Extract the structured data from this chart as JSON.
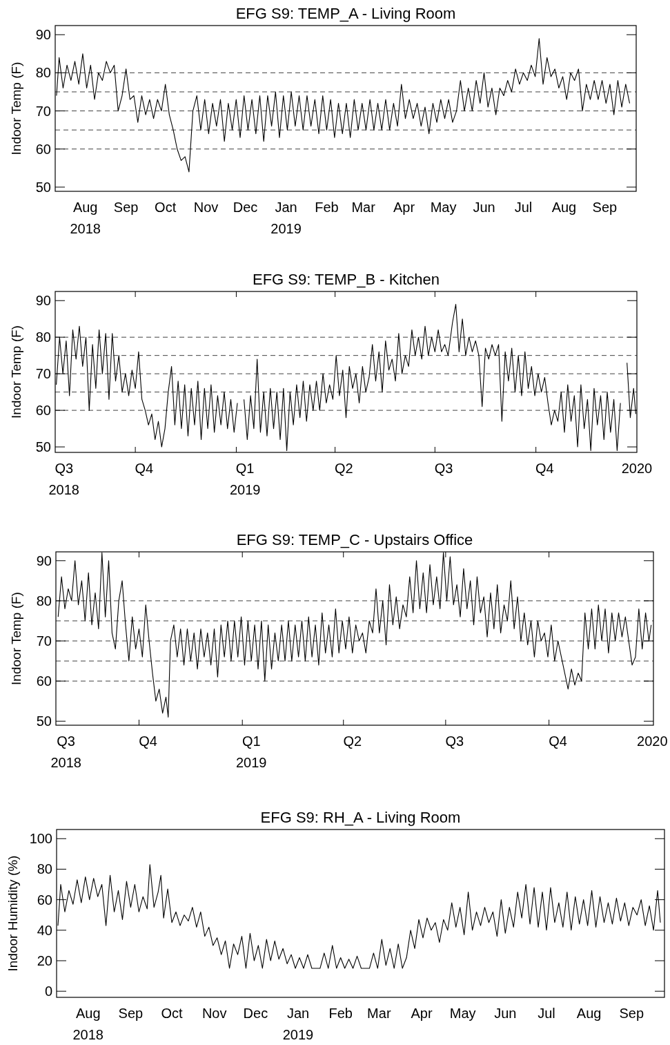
{
  "chart_data": [
    {
      "type": "line",
      "title": "EFG S9: TEMP_A - Living Room",
      "ylabel": "Indoor Temp (F)",
      "xlim": [
        "2018-07-19",
        "2019-10-05"
      ],
      "ylim": [
        48.9,
        92.4
      ],
      "yticks": [
        50,
        60,
        70,
        80,
        90
      ],
      "xticks": [
        {
          "value": "2018-08-11",
          "label": "Aug\n2018"
        },
        {
          "value": "2018-09-11",
          "label": "Sep"
        },
        {
          "value": "2018-10-11",
          "label": "Oct"
        },
        {
          "value": "2018-11-11",
          "label": "Nov"
        },
        {
          "value": "2018-12-11",
          "label": "Dec"
        },
        {
          "value": "2019-01-11",
          "label": "Jan\n2019"
        },
        {
          "value": "2019-02-11",
          "label": "Feb"
        },
        {
          "value": "2019-03-11",
          "label": "Mar"
        },
        {
          "value": "2019-04-11",
          "label": "Apr"
        },
        {
          "value": "2019-05-11",
          "label": "May"
        },
        {
          "value": "2019-06-11",
          "label": "Jun"
        },
        {
          "value": "2019-07-11",
          "label": "Jul"
        },
        {
          "value": "2019-08-11",
          "label": "Aug"
        },
        {
          "value": "2019-09-11",
          "label": "Sep"
        }
      ],
      "ref_lines": [
        {
          "axis": "y",
          "value": 60,
          "color": "#404040",
          "line_style": "dashed"
        },
        {
          "axis": "y",
          "value": 65,
          "color": "#404040",
          "line_style": "dashed"
        },
        {
          "axis": "y",
          "value": 70,
          "color": "#404040",
          "line_style": "dashed"
        },
        {
          "axis": "y",
          "value": 75,
          "color": "#404040",
          "line_style": "dashed"
        },
        {
          "axis": "y",
          "value": 80,
          "color": "#404040",
          "line_style": "dashed"
        }
      ],
      "x": [
        "2018-07-20",
        "2018-07-22",
        "2018-07-25",
        "2018-07-28",
        "2018-07-31",
        "2018-08-03",
        "2018-08-06",
        "2018-08-09",
        "2018-08-12",
        "2018-08-15",
        "2018-08-18",
        "2018-08-21",
        "2018-08-24",
        "2018-08-27",
        "2018-08-30",
        "2018-09-02",
        "2018-09-05",
        "2018-09-08",
        "2018-09-11",
        "2018-09-14",
        "2018-09-17",
        "2018-09-20",
        "2018-09-23",
        "2018-09-26",
        "2018-09-29",
        "2018-10-02",
        "2018-10-05",
        "2018-10-08",
        "2018-10-11",
        "2018-10-14",
        "2018-10-17",
        "2018-10-20",
        "2018-10-23",
        "2018-10-26",
        "2018-10-29",
        "2018-11-01",
        "2018-11-04",
        "2018-11-07",
        "2018-11-10",
        "2018-11-13",
        "2018-11-16",
        "2018-11-19",
        "2018-11-22",
        "2018-11-25",
        "2018-11-28",
        "2018-12-01",
        "2018-12-04",
        "2018-12-07",
        "2018-12-10",
        "2018-12-13",
        "2018-12-16",
        "2018-12-19",
        "2018-12-22",
        "2018-12-25",
        "2018-12-28",
        "2018-12-31",
        "2019-01-03",
        "2019-01-06",
        "2019-01-09",
        "2019-01-12",
        "2019-01-15",
        "2019-01-18",
        "2019-01-21",
        "2019-01-24",
        "2019-01-27",
        "2019-01-30",
        "2019-02-02",
        "2019-02-05",
        "2019-02-08",
        "2019-02-11",
        "2019-02-14",
        "2019-02-17",
        "2019-02-20",
        "2019-02-23",
        "2019-02-26",
        "2019-03-01",
        "2019-03-04",
        "2019-03-07",
        "2019-03-10",
        "2019-03-13",
        "2019-03-16",
        "2019-03-19",
        "2019-03-22",
        "2019-03-25",
        "2019-03-28",
        "2019-03-31",
        "2019-04-03",
        "2019-04-06",
        "2019-04-09",
        "2019-04-12",
        "2019-04-15",
        "2019-04-18",
        "2019-04-21",
        "2019-04-24",
        "2019-04-27",
        "2019-04-30",
        "2019-05-03",
        "2019-05-06",
        "2019-05-09",
        "2019-05-12",
        "2019-05-15",
        "2019-05-18",
        "2019-05-21",
        "2019-05-24",
        "2019-05-27",
        "2019-05-30",
        "2019-06-02",
        "2019-06-05",
        "2019-06-08",
        "2019-06-11",
        "2019-06-14",
        "2019-06-17",
        "2019-06-20",
        "2019-06-23",
        "2019-06-26",
        "2019-06-29",
        "2019-07-02",
        "2019-07-05",
        "2019-07-08",
        "2019-07-11",
        "2019-07-14",
        "2019-07-17",
        "2019-07-20",
        "2019-07-23",
        "2019-07-26",
        "2019-07-29",
        "2019-08-01",
        "2019-08-04",
        "2019-08-07",
        "2019-08-10",
        "2019-08-13",
        "2019-08-16",
        "2019-08-19",
        "2019-08-22",
        "2019-08-25",
        "2019-08-28",
        "2019-08-31",
        "2019-09-03",
        "2019-09-06",
        "2019-09-09",
        "2019-09-12",
        "2019-09-15",
        "2019-09-18",
        "2019-09-21",
        "2019-09-24",
        "2019-09-27",
        "2019-09-30"
      ],
      "series": [
        {
          "color": "#000000",
          "values": [
            74,
            84,
            76,
            82,
            78,
            83,
            77,
            85,
            76,
            82,
            73,
            80,
            78,
            83,
            80,
            82,
            70,
            74,
            81,
            73,
            74,
            67,
            74,
            69,
            73,
            68,
            73,
            70,
            77,
            69,
            65,
            60,
            57,
            58,
            54,
            70,
            74,
            65,
            73,
            64,
            72,
            66,
            73,
            62,
            72,
            65,
            73,
            63,
            74,
            65,
            73,
            64,
            74,
            62,
            74,
            66,
            75,
            63,
            74,
            65,
            75,
            66,
            74,
            65,
            74,
            66,
            73,
            64,
            74,
            65,
            73,
            63,
            72,
            64,
            72,
            63,
            73,
            65,
            72,
            65,
            73,
            65,
            72,
            65,
            73,
            65,
            72,
            66,
            77,
            68,
            73,
            68,
            72,
            66,
            71,
            64,
            72,
            67,
            73,
            68,
            73,
            67,
            70,
            78,
            70,
            76,
            70,
            78,
            72,
            80,
            71,
            76,
            69,
            76,
            74,
            78,
            75,
            81,
            77,
            80,
            78,
            82,
            79,
            89,
            77,
            84,
            79,
            81,
            76,
            79,
            73,
            80,
            78,
            81,
            70,
            77,
            73,
            78,
            73,
            78,
            72,
            77,
            69,
            78,
            71,
            77,
            72
          ]
        }
      ]
    },
    {
      "type": "line",
      "title": "EFG S9: TEMP_B - Kitchen",
      "ylabel": "Indoor Temp (F)",
      "xlim": [
        "2018-07-20",
        "2020-01-01"
      ],
      "ylim": [
        48.5,
        92.5
      ],
      "yticks": [
        50,
        60,
        70,
        80,
        90
      ],
      "xticks": [
        {
          "value": "2018-10-01",
          "label": null
        },
        {
          "value": "2019-01-01",
          "label": null
        },
        {
          "value": "2019-04-01",
          "label": null
        },
        {
          "value": "2019-07-01",
          "label": null
        },
        {
          "value": "2019-10-01",
          "label": null
        },
        {
          "value": "2018-07-28",
          "label": "Q3\n2018"
        },
        {
          "value": "2018-10-09",
          "label": "Q4"
        },
        {
          "value": "2019-01-09",
          "label": "Q1\n2019"
        },
        {
          "value": "2019-04-09",
          "label": "Q2"
        },
        {
          "value": "2019-07-09",
          "label": "Q3"
        },
        {
          "value": "2019-10-09",
          "label": "Q4"
        },
        {
          "value": "2020-01-01",
          "label": "2020"
        }
      ],
      "ref_lines": [
        {
          "axis": "y",
          "value": 60,
          "color": "#404040",
          "line_style": "dashed"
        },
        {
          "axis": "y",
          "value": 65,
          "color": "#404040",
          "line_style": "dashed"
        },
        {
          "axis": "y",
          "value": 70,
          "color": "#404040",
          "line_style": "dashed"
        },
        {
          "axis": "y",
          "value": 75,
          "color": "#404040",
          "line_style": "dashed"
        },
        {
          "axis": "y",
          "value": 80,
          "color": "#404040",
          "line_style": "dashed"
        }
      ],
      "x": [
        "2018-07-21",
        "2018-07-24",
        "2018-07-27",
        "2018-07-30",
        "2018-08-02",
        "2018-08-05",
        "2018-08-08",
        "2018-08-11",
        "2018-08-14",
        "2018-08-17",
        "2018-08-20",
        "2018-08-23",
        "2018-08-26",
        "2018-08-29",
        "2018-09-01",
        "2018-09-04",
        "2018-09-07",
        "2018-09-10",
        "2018-09-13",
        "2018-09-16",
        "2018-09-19",
        "2018-09-22",
        "2018-09-25",
        "2018-09-28",
        "2018-10-01",
        "2018-10-04",
        "2018-10-07",
        "2018-10-10",
        "2018-10-13",
        "2018-10-16",
        "2018-10-19",
        "2018-10-22",
        "2018-10-25",
        "2018-10-28",
        "2018-10-31",
        "2018-11-03",
        "2018-11-06",
        "2018-11-09",
        "2018-11-12",
        "2018-11-15",
        "2018-11-18",
        "2018-11-21",
        "2018-11-24",
        "2018-11-27",
        "2018-11-30",
        "2018-12-03",
        "2018-12-06",
        "2018-12-09",
        "2018-12-12",
        "2018-12-15",
        "2018-12-18",
        "2018-12-21",
        "2018-12-24",
        "2018-12-27",
        "2018-12-30",
        "2019-01-02",
        "2019-01-05",
        "2019-01-08",
        "2019-01-11",
        "2019-01-14",
        "2019-01-17",
        "2019-01-20",
        "2019-01-23",
        "2019-01-26",
        "2019-01-29",
        "2019-02-01",
        "2019-02-04",
        "2019-02-07",
        "2019-02-10",
        "2019-02-13",
        "2019-02-16",
        "2019-02-19",
        "2019-02-22",
        "2019-02-25",
        "2019-02-28",
        "2019-03-03",
        "2019-03-06",
        "2019-03-09",
        "2019-03-12",
        "2019-03-15",
        "2019-03-18",
        "2019-03-21",
        "2019-03-24",
        "2019-03-27",
        "2019-03-30",
        "2019-04-02",
        "2019-04-05",
        "2019-04-08",
        "2019-04-11",
        "2019-04-14",
        "2019-04-17",
        "2019-04-20",
        "2019-04-23",
        "2019-04-26",
        "2019-04-29",
        "2019-05-02",
        "2019-05-05",
        "2019-05-08",
        "2019-05-11",
        "2019-05-14",
        "2019-05-17",
        "2019-05-20",
        "2019-05-23",
        "2019-05-26",
        "2019-05-29",
        "2019-06-01",
        "2019-06-04",
        "2019-06-07",
        "2019-06-10",
        "2019-06-13",
        "2019-06-16",
        "2019-06-19",
        "2019-06-22",
        "2019-06-25",
        "2019-06-28",
        "2019-07-01",
        "2019-07-04",
        "2019-07-07",
        "2019-07-10",
        "2019-07-13",
        "2019-07-17",
        "2019-07-20",
        "2019-07-23",
        "2019-07-26",
        "2019-07-29",
        "2019-08-01",
        "2019-08-04",
        "2019-08-07",
        "2019-08-10",
        "2019-08-13",
        "2019-08-16",
        "2019-08-19",
        "2019-08-22",
        "2019-08-25",
        "2019-08-28",
        "2019-08-31",
        "2019-09-03",
        "2019-09-06",
        "2019-09-09",
        "2019-09-12",
        "2019-09-15",
        "2019-09-18",
        "2019-09-21",
        "2019-09-24",
        "2019-09-27",
        "2019-09-30",
        "2019-10-03",
        "2019-10-06",
        "2019-10-09",
        "2019-10-12",
        "2019-10-15",
        "2019-10-18",
        "2019-10-21",
        "2019-10-24",
        "2019-10-27",
        "2019-10-30",
        "2019-11-02",
        "2019-11-05",
        "2019-11-08",
        "2019-11-11",
        "2019-11-14",
        "2019-11-17",
        "2019-11-20",
        "2019-11-23",
        "2019-11-26",
        "2019-11-29",
        "2019-12-02",
        "2019-12-05",
        "2019-12-08",
        "2019-12-11",
        "2019-12-14",
        "2019-12-17",
        "2019-12-20",
        "2019-12-23",
        "2019-12-26",
        "2019-12-29",
        "2019-12-31"
      ],
      "series": [
        {
          "color": "#000000",
          "values": [
            67,
            80,
            70,
            79,
            64,
            82,
            74,
            83,
            72,
            80,
            60,
            78,
            66,
            82,
            70,
            81,
            63,
            81,
            68,
            75,
            65,
            70,
            64,
            71,
            66,
            76,
            63,
            60,
            56,
            59,
            52,
            57,
            50,
            55,
            65,
            72,
            56,
            68,
            55,
            67,
            53,
            66,
            56,
            68,
            52,
            66,
            55,
            67,
            54,
            64,
            56,
            65,
            55,
            63,
            54,
            62,
            null,
            63,
            52,
            64,
            55,
            74,
            54,
            65,
            53,
            66,
            55,
            65,
            52,
            66,
            49,
            65,
            56,
            67,
            58,
            68,
            57,
            67,
            60,
            68,
            60,
            70,
            62,
            67,
            63,
            75,
            64,
            71,
            58,
            72,
            66,
            70,
            62,
            72,
            65,
            69,
            78,
            68,
            76,
            65,
            79,
            71,
            74,
            68,
            81,
            70,
            75,
            72,
            82,
            75,
            80,
            74,
            83,
            75,
            80,
            76,
            82,
            76,
            78,
            75,
            84,
            89,
            76,
            85,
            75,
            80,
            76,
            79,
            75,
            61,
            77,
            74,
            78,
            75,
            78,
            57,
            76,
            68,
            77,
            65,
            75,
            64,
            76,
            66,
            72,
            64,
            70,
            65,
            69,
            62,
            56,
            60,
            57,
            65,
            54,
            67,
            57,
            64,
            50,
            67,
            55,
            63,
            49,
            66,
            56,
            64,
            52,
            65,
            54,
            63,
            49,
            62,
            null,
            73,
            58,
            66,
            59
          ]
        }
      ]
    },
    {
      "type": "line",
      "title": "EFG S9: TEMP_C - Upstairs Office",
      "ylabel": "Indoor Temp (F)",
      "xlim": [
        "2018-07-19",
        "2020-01-02"
      ],
      "ylim": [
        49,
        92.2
      ],
      "yticks": [
        50,
        60,
        70,
        80,
        90
      ],
      "xticks": [
        {
          "value": "2018-10-01",
          "label": null
        },
        {
          "value": "2019-01-01",
          "label": null
        },
        {
          "value": "2019-04-01",
          "label": null
        },
        {
          "value": "2019-07-01",
          "label": null
        },
        {
          "value": "2019-10-01",
          "label": null
        },
        {
          "value": "2018-07-28",
          "label": "Q3\n2018"
        },
        {
          "value": "2018-10-09",
          "label": "Q4"
        },
        {
          "value": "2019-01-09",
          "label": "Q1\n2019"
        },
        {
          "value": "2019-04-09",
          "label": "Q2"
        },
        {
          "value": "2019-07-09",
          "label": "Q3"
        },
        {
          "value": "2019-10-09",
          "label": "Q4"
        },
        {
          "value": "2020-01-01",
          "label": "2020"
        }
      ],
      "ref_lines": [
        {
          "axis": "y",
          "value": 60,
          "color": "#404040",
          "line_style": "dashed"
        },
        {
          "axis": "y",
          "value": 65,
          "color": "#404040",
          "line_style": "dashed"
        },
        {
          "axis": "y",
          "value": 70,
          "color": "#404040",
          "line_style": "dashed"
        },
        {
          "axis": "y",
          "value": 75,
          "color": "#404040",
          "line_style": "dashed"
        },
        {
          "axis": "y",
          "value": 80,
          "color": "#404040",
          "line_style": "dashed"
        }
      ],
      "x": [
        "2018-07-21",
        "2018-07-24",
        "2018-07-27",
        "2018-07-30",
        "2018-08-02",
        "2018-08-05",
        "2018-08-08",
        "2018-08-11",
        "2018-08-14",
        "2018-08-17",
        "2018-08-20",
        "2018-08-23",
        "2018-08-26",
        "2018-08-29",
        "2018-09-01",
        "2018-09-04",
        "2018-09-07",
        "2018-09-10",
        "2018-09-13",
        "2018-09-16",
        "2018-09-19",
        "2018-09-22",
        "2018-09-25",
        "2018-09-28",
        "2018-10-01",
        "2018-10-04",
        "2018-10-07",
        "2018-10-10",
        "2018-10-13",
        "2018-10-16",
        "2018-10-19",
        "2018-10-22",
        "2018-10-25",
        "2018-10-27",
        "2018-10-29",
        "2018-11-01",
        "2018-11-04",
        "2018-11-07",
        "2018-11-10",
        "2018-11-13",
        "2018-11-16",
        "2018-11-19",
        "2018-11-22",
        "2018-11-25",
        "2018-11-28",
        "2018-12-01",
        "2018-12-04",
        "2018-12-07",
        "2018-12-10",
        "2018-12-13",
        "2018-12-16",
        "2018-12-19",
        "2018-12-22",
        "2018-12-25",
        "2018-12-28",
        "2018-12-31",
        "2019-01-03",
        "2019-01-06",
        "2019-01-09",
        "2019-01-12",
        "2019-01-15",
        "2019-01-18",
        "2019-01-21",
        "2019-01-24",
        "2019-01-27",
        "2019-01-30",
        "2019-02-02",
        "2019-02-05",
        "2019-02-08",
        "2019-02-11",
        "2019-02-14",
        "2019-02-17",
        "2019-02-20",
        "2019-02-23",
        "2019-02-26",
        "2019-03-01",
        "2019-03-04",
        "2019-03-07",
        "2019-03-10",
        "2019-03-13",
        "2019-03-16",
        "2019-03-19",
        "2019-03-22",
        "2019-03-25",
        "2019-03-28",
        "2019-03-31",
        "2019-04-03",
        "2019-04-06",
        "2019-04-09",
        "2019-04-12",
        "2019-04-15",
        "2019-04-18",
        "2019-04-21",
        "2019-04-24",
        "2019-04-27",
        "2019-04-30",
        "2019-05-03",
        "2019-05-06",
        "2019-05-09",
        "2019-05-12",
        "2019-05-15",
        "2019-05-18",
        "2019-05-21",
        "2019-05-24",
        "2019-05-27",
        "2019-05-30",
        "2019-06-02",
        "2019-06-05",
        "2019-06-08",
        "2019-06-11",
        "2019-06-14",
        "2019-06-17",
        "2019-06-20",
        "2019-06-23",
        "2019-06-26",
        "2019-06-29",
        "2019-07-02",
        "2019-07-05",
        "2019-07-08",
        "2019-07-11",
        "2019-07-14",
        "2019-07-17",
        "2019-07-20",
        "2019-07-23",
        "2019-07-26",
        "2019-07-29",
        "2019-08-01",
        "2019-08-04",
        "2019-08-07",
        "2019-08-10",
        "2019-08-13",
        "2019-08-16",
        "2019-08-19",
        "2019-08-22",
        "2019-08-25",
        "2019-08-28",
        "2019-08-31",
        "2019-09-03",
        "2019-09-06",
        "2019-09-09",
        "2019-09-12",
        "2019-09-15",
        "2019-09-18",
        "2019-09-21",
        "2019-09-24",
        "2019-09-27",
        "2019-09-30",
        "2019-10-03",
        "2019-10-06",
        "2019-10-09",
        "2019-10-12",
        "2019-10-15",
        "2019-10-18",
        "2019-10-21",
        "2019-10-24",
        "2019-10-27",
        "2019-10-30",
        "2019-11-02",
        "2019-11-05",
        "2019-11-08",
        "2019-11-11",
        "2019-11-14",
        "2019-11-17",
        "2019-11-20",
        "2019-11-23",
        "2019-11-26",
        "2019-11-29",
        "2019-12-02",
        "2019-12-05",
        "2019-12-08",
        "2019-12-11",
        "2019-12-14",
        "2019-12-17",
        "2019-12-20",
        "2019-12-23",
        "2019-12-26",
        "2019-12-29",
        "2019-12-31"
      ],
      "series": [
        {
          "color": "#000000",
          "values": [
            76,
            86,
            78,
            83,
            80,
            90,
            79,
            85,
            75,
            87,
            74,
            82,
            73,
            92,
            76,
            90,
            72,
            68,
            80,
            85,
            74,
            65,
            76,
            68,
            73,
            66,
            79,
            70,
            62,
            55,
            58,
            52,
            56,
            51,
            70,
            74,
            66,
            73,
            64,
            73,
            65,
            72,
            63,
            73,
            66,
            72,
            64,
            73,
            61,
            74,
            66,
            75,
            65,
            75,
            66,
            76,
            64,
            75,
            65,
            74,
            63,
            75,
            60,
            74,
            63,
            72,
            65,
            74,
            65,
            75,
            65,
            74,
            66,
            75,
            65,
            76,
            66,
            74,
            64,
            77,
            67,
            74,
            66,
            78,
            67,
            75,
            68,
            76,
            67,
            74,
            70,
            72,
            67,
            75,
            72,
            83,
            72,
            80,
            69,
            84,
            74,
            81,
            73,
            79,
            76,
            86,
            77,
            90,
            78,
            87,
            77,
            89,
            79,
            86,
            78,
            92,
            80,
            91,
            79,
            84,
            76,
            88,
            78,
            85,
            74,
            86,
            77,
            81,
            71,
            82,
            73,
            84,
            72,
            79,
            75,
            85,
            73,
            81,
            70,
            77,
            69,
            75,
            66,
            75,
            70,
            72,
            66,
            74,
            65,
            70,
            66,
            62,
            58,
            63,
            59,
            62,
            60,
            77,
            68,
            78,
            68,
            79,
            70,
            78,
            67,
            77,
            70,
            77,
            71,
            76,
            70,
            64,
            66,
            78,
            68,
            77,
            70,
            74
          ]
        }
      ]
    },
    {
      "type": "line",
      "title": "EFG S9: RH_A - Living Room",
      "ylabel": "Indoor Humidity (%)",
      "xlim": [
        "2018-07-19",
        "2019-10-05"
      ],
      "ylim": [
        -4,
        106
      ],
      "yticks": [
        0,
        20,
        40,
        60,
        80,
        100
      ],
      "xticks": [
        {
          "value": "2018-08-11",
          "label": "Aug\n2018"
        },
        {
          "value": "2018-09-11",
          "label": "Sep"
        },
        {
          "value": "2018-10-11",
          "label": "Oct"
        },
        {
          "value": "2018-11-11",
          "label": "Nov"
        },
        {
          "value": "2018-12-11",
          "label": "Dec"
        },
        {
          "value": "2019-01-11",
          "label": "Jan\n2019"
        },
        {
          "value": "2019-02-11",
          "label": "Feb"
        },
        {
          "value": "2019-03-11",
          "label": "Mar"
        },
        {
          "value": "2019-04-11",
          "label": "Apr"
        },
        {
          "value": "2019-05-11",
          "label": "May"
        },
        {
          "value": "2019-06-11",
          "label": "Jun"
        },
        {
          "value": "2019-07-11",
          "label": "Jul"
        },
        {
          "value": "2019-08-11",
          "label": "Aug"
        },
        {
          "value": "2019-09-11",
          "label": "Sep"
        }
      ],
      "x": [
        "2018-07-20",
        "2018-07-22",
        "2018-07-25",
        "2018-07-28",
        "2018-07-31",
        "2018-08-03",
        "2018-08-06",
        "2018-08-09",
        "2018-08-12",
        "2018-08-15",
        "2018-08-18",
        "2018-08-21",
        "2018-08-24",
        "2018-08-27",
        "2018-08-30",
        "2018-09-02",
        "2018-09-05",
        "2018-09-08",
        "2018-09-11",
        "2018-09-14",
        "2018-09-17",
        "2018-09-20",
        "2018-09-23",
        "2018-09-25",
        "2018-09-28",
        "2018-10-01",
        "2018-10-03",
        "2018-10-05",
        "2018-10-08",
        "2018-10-11",
        "2018-10-14",
        "2018-10-17",
        "2018-10-20",
        "2018-10-23",
        "2018-10-26",
        "2018-10-29",
        "2018-11-01",
        "2018-11-04",
        "2018-11-07",
        "2018-11-10",
        "2018-11-13",
        "2018-11-16",
        "2018-11-19",
        "2018-11-22",
        "2018-11-25",
        "2018-11-28",
        "2018-12-01",
        "2018-12-04",
        "2018-12-07",
        "2018-12-10",
        "2018-12-13",
        "2018-12-16",
        "2018-12-19",
        "2018-12-22",
        "2018-12-25",
        "2018-12-28",
        "2018-12-31",
        "2019-01-03",
        "2019-01-06",
        "2019-01-09",
        "2019-01-12",
        "2019-01-15",
        "2019-01-18",
        "2019-01-21",
        "2019-01-24",
        "2019-01-27",
        "2019-01-30",
        "2019-02-02",
        "2019-02-05",
        "2019-02-08",
        "2019-02-11",
        "2019-02-14",
        "2019-02-17",
        "2019-02-20",
        "2019-02-23",
        "2019-02-26",
        "2019-03-01",
        "2019-03-04",
        "2019-03-07",
        "2019-03-10",
        "2019-03-13",
        "2019-03-16",
        "2019-03-19",
        "2019-03-22",
        "2019-03-25",
        "2019-03-28",
        "2019-03-31",
        "2019-04-03",
        "2019-04-06",
        "2019-04-09",
        "2019-04-12",
        "2019-04-15",
        "2019-04-18",
        "2019-04-21",
        "2019-04-24",
        "2019-04-27",
        "2019-04-30",
        "2019-05-03",
        "2019-05-06",
        "2019-05-09",
        "2019-05-12",
        "2019-05-15",
        "2019-05-18",
        "2019-05-21",
        "2019-05-24",
        "2019-05-27",
        "2019-05-30",
        "2019-06-02",
        "2019-06-05",
        "2019-06-08",
        "2019-06-11",
        "2019-06-14",
        "2019-06-17",
        "2019-06-20",
        "2019-06-23",
        "2019-06-26",
        "2019-06-29",
        "2019-07-02",
        "2019-07-05",
        "2019-07-08",
        "2019-07-11",
        "2019-07-14",
        "2019-07-17",
        "2019-07-20",
        "2019-07-23",
        "2019-07-26",
        "2019-07-29",
        "2019-08-01",
        "2019-08-04",
        "2019-08-07",
        "2019-08-10",
        "2019-08-13",
        "2019-08-16",
        "2019-08-19",
        "2019-08-22",
        "2019-08-25",
        "2019-08-28",
        "2019-08-31",
        "2019-09-03",
        "2019-09-06",
        "2019-09-09",
        "2019-09-12",
        "2019-09-15",
        "2019-09-18",
        "2019-09-21",
        "2019-09-24",
        "2019-09-27",
        "2019-09-30",
        "2019-10-02"
      ],
      "series": [
        {
          "color": "#000000",
          "values": [
            43,
            70,
            52,
            66,
            57,
            73,
            58,
            75,
            60,
            74,
            62,
            70,
            43,
            76,
            52,
            66,
            47,
            72,
            55,
            70,
            52,
            62,
            54,
            83,
            55,
            65,
            76,
            48,
            67,
            45,
            52,
            43,
            50,
            46,
            55,
            42,
            52,
            36,
            42,
            30,
            35,
            24,
            33,
            15,
            31,
            24,
            36,
            15,
            38,
            20,
            30,
            15,
            34,
            20,
            33,
            21,
            28,
            18,
            24,
            15,
            22,
            15,
            24,
            15,
            15,
            15,
            25,
            15,
            30,
            15,
            22,
            15,
            21,
            15,
            23,
            15,
            15,
            15,
            25,
            15,
            34,
            17,
            28,
            15,
            31,
            15,
            22,
            40,
            28,
            47,
            35,
            48,
            40,
            45,
            32,
            47,
            40,
            58,
            42,
            55,
            37,
            65,
            40,
            52,
            43,
            55,
            45,
            52,
            36,
            60,
            38,
            55,
            42,
            65,
            48,
            70,
            44,
            68,
            42,
            65,
            40,
            68,
            45,
            58,
            42,
            65,
            40,
            62,
            44,
            60,
            43,
            66,
            42,
            62,
            45,
            58,
            44,
            61,
            46,
            58,
            43,
            55,
            50,
            60,
            43,
            56,
            40,
            66,
            45
          ]
        }
      ]
    }
  ]
}
